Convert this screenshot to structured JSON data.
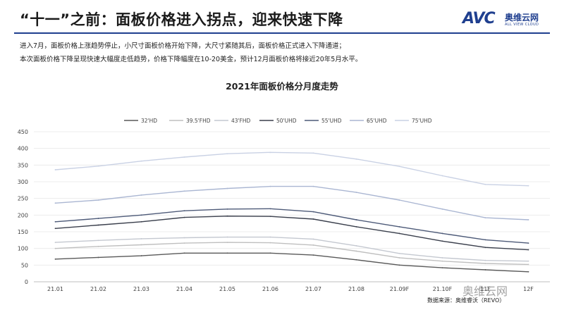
{
  "header": {
    "title": "“十一”之前：面板价格进入拐点，迎来快速下降",
    "logo_text": "AVC",
    "logo_cn": "奥维云网",
    "logo_en": "ALL VIEW CLOUD"
  },
  "description": {
    "line1": "进入7月，面板价格上涨趋势停止，小尺寸面板价格开始下降，大尺寸紧随其后，面板价格正式进入下降通道；",
    "line2": "本次面板价格下降呈现快速大幅度走低趋势，价格下降幅度在10-20美金，预计12月面板价格将接近20年5月水平。"
  },
  "footer": {
    "source": "数据来源：奥维睿沃（REVO）",
    "watermark": "奥维云网"
  },
  "chart_data": {
    "type": "line",
    "title": "2021年面板价格分月度走势",
    "categories": [
      "21.01",
      "21.02",
      "21.03",
      "21.04",
      "21.05",
      "21.06",
      "21.07",
      "21.08",
      "21.09F",
      "21.10F",
      "11F",
      "12F"
    ],
    "ylim": [
      0,
      450
    ],
    "yticks": [
      0,
      50,
      100,
      150,
      200,
      250,
      300,
      350,
      400,
      450
    ],
    "grid": true,
    "legend_position": "top",
    "series": [
      {
        "name": "32'HD",
        "color": "#595959",
        "values": [
          68,
          73,
          78,
          86,
          86,
          86,
          80,
          66,
          50,
          42,
          36,
          30
        ]
      },
      {
        "name": "39.5'FHD",
        "color": "#bfbfbf",
        "values": [
          100,
          106,
          111,
          116,
          118,
          117,
          110,
          92,
          72,
          62,
          55,
          52
        ]
      },
      {
        "name": "43'FHD",
        "color": "#c4c8d0",
        "values": [
          118,
          124,
          129,
          132,
          134,
          134,
          128,
          108,
          85,
          72,
          64,
          62
        ]
      },
      {
        "name": "50'UHD",
        "color": "#3a3f4c",
        "values": [
          160,
          170,
          180,
          193,
          197,
          196,
          188,
          165,
          145,
          122,
          103,
          96
        ]
      },
      {
        "name": "55'UHD",
        "color": "#4d5a78",
        "values": [
          180,
          190,
          200,
          213,
          218,
          219,
          210,
          186,
          165,
          145,
          126,
          116
        ]
      },
      {
        "name": "65'UHD",
        "color": "#aab6d2",
        "values": [
          236,
          245,
          260,
          272,
          280,
          286,
          286,
          268,
          245,
          218,
          192,
          186
        ]
      },
      {
        "name": "75'UHD",
        "color": "#c9d1e4",
        "values": [
          336,
          347,
          362,
          374,
          384,
          388,
          386,
          368,
          346,
          318,
          292,
          288
        ]
      }
    ]
  }
}
